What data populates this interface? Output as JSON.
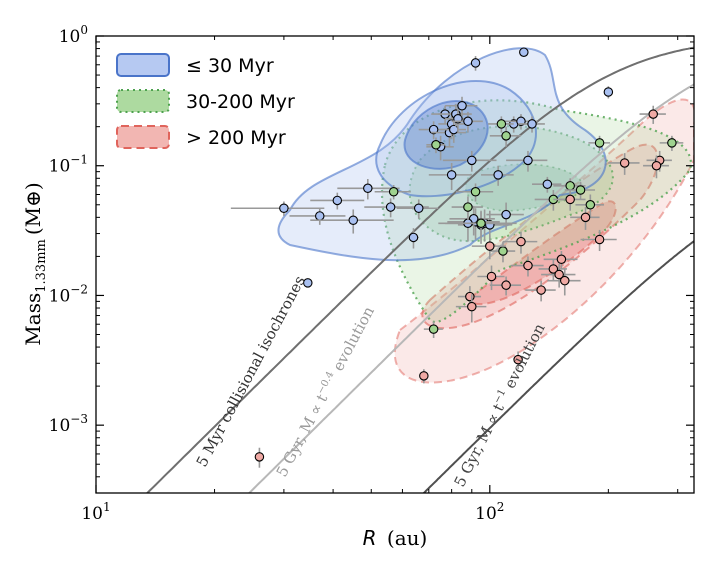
{
  "chart_data": {
    "type": "scatter",
    "xlabel_main": "R",
    "xlabel_unit": "(au)",
    "ylabel_main": "Mass",
    "ylabel_sub": "1.33mm",
    "ylabel_unit": "(M⊕)",
    "x_scale": "log",
    "y_scale": "log",
    "xlim": [
      10,
      330
    ],
    "ylim": [
      0.0003,
      1.0
    ],
    "x_ticks": [
      {
        "value": 10,
        "base": "10",
        "exp": "1"
      },
      {
        "value": 100,
        "base": "10",
        "exp": "2"
      }
    ],
    "y_ticks": [
      {
        "value": 0.001,
        "base": "10",
        "exp": "−3"
      },
      {
        "value": 0.01,
        "base": "10",
        "exp": "−2"
      },
      {
        "value": 0.1,
        "base": "10",
        "exp": "−1"
      },
      {
        "value": 1.0,
        "base": "10",
        "exp": "0"
      }
    ],
    "legend_position": "top-left",
    "legend": [
      {
        "label": "≤  30 Myr",
        "color": "#4a74c9",
        "style": "solid"
      },
      {
        "label": "30-200 Myr",
        "color": "#4ea24f",
        "style": "dotted"
      },
      {
        "label": ">  200 Myr",
        "color": "#e0645c",
        "style": "dashed"
      }
    ],
    "colors": {
      "young": "#a9c0f0",
      "mid": "#9fd38f",
      "old": "#f0a9a4"
    },
    "curves": [
      {
        "label": "5 Myr collisional isochrones",
        "color": "#707070",
        "style": "dashed",
        "x_at_bottom": 13.5,
        "x_plateau": 330,
        "plateau": 1.0
      },
      {
        "label": "5 Gyr, M ∝ t^−0.4 evolution",
        "color": "#b8b8b8",
        "style": "dashed",
        "x_at_bottom": 24.5,
        "x_plateau": 330,
        "plateau": 1.0
      },
      {
        "label": "5 Gyr, M ∝ t^−1 evolution",
        "color": "#505050",
        "style": "dashed",
        "x_at_bottom": 68,
        "x_plateau": 330,
        "plateau": 0.11
      }
    ],
    "curve_text": [
      {
        "main": "5 Myr collisional isochrones",
        "sup": ""
      },
      {
        "main": "5 Gyr, M ∝ t",
        "sup": "−0.4",
        "tail": " evolution"
      },
      {
        "main": "5 Gyr, M ∝ t",
        "sup": "−1",
        "tail": " evolution"
      }
    ],
    "series": [
      {
        "name": "≤ 30 Myr",
        "color": "#a9c0f0",
        "points": [
          {
            "x": 30,
            "y": 0.047,
            "xerr": [
              8,
              8
            ],
            "yerr": [
              0.006,
              0.006
            ]
          },
          {
            "x": 34.5,
            "y": 0.0125,
            "xerr": [
              0,
              0
            ],
            "yerr": [
              0.0008,
              0.0008
            ]
          },
          {
            "x": 37,
            "y": 0.041,
            "xerr": [
              6,
              6
            ],
            "yerr": [
              0.006,
              0.006
            ]
          },
          {
            "x": 41,
            "y": 0.054,
            "xerr": [
              6,
              7
            ],
            "yerr": [
              0.008,
              0.008
            ]
          },
          {
            "x": 45,
            "y": 0.038,
            "xerr": [
              10,
              12
            ],
            "yerr": [
              0.008,
              0.008
            ]
          },
          {
            "x": 49,
            "y": 0.067,
            "xerr": [
              8,
              10
            ],
            "yerr": [
              0.012,
              0.012
            ]
          },
          {
            "x": 56,
            "y": 0.048,
            "xerr": [
              8,
              14
            ],
            "yerr": [
              0.008,
              0.008
            ]
          },
          {
            "x": 64,
            "y": 0.028,
            "xerr": [
              2,
              2
            ],
            "yerr": [
              0.005,
              0.005
            ]
          },
          {
            "x": 66,
            "y": 0.047,
            "xerr": [
              8,
              8
            ],
            "yerr": [
              0.008,
              0.008
            ]
          },
          {
            "x": 72,
            "y": 0.19,
            "xerr": [
              6,
              6
            ],
            "yerr": [
              0.03,
              0.03
            ]
          },
          {
            "x": 75,
            "y": 0.14,
            "xerr": [
              6,
              6
            ],
            "yerr": [
              0.03,
              0.03
            ]
          },
          {
            "x": 77,
            "y": 0.25,
            "xerr": [
              6,
              6
            ],
            "yerr": [
              0.04,
              0.04
            ]
          },
          {
            "x": 79,
            "y": 0.18,
            "xerr": [
              8,
              8
            ],
            "yerr": [
              0.04,
              0.04
            ]
          },
          {
            "x": 80,
            "y": 0.21,
            "xerr": [
              6,
              6
            ],
            "yerr": [
              0.05,
              0.05
            ]
          },
          {
            "x": 81,
            "y": 0.19,
            "xerr": [
              6,
              6
            ],
            "yerr": [
              0.04,
              0.04
            ]
          },
          {
            "x": 82,
            "y": 0.25,
            "xerr": [
              8,
              8
            ],
            "yerr": [
              0.05,
              0.05
            ]
          },
          {
            "x": 83,
            "y": 0.23,
            "xerr": [
              6,
              6
            ],
            "yerr": [
              0.05,
              0.05
            ]
          },
          {
            "x": 85,
            "y": 0.29,
            "xerr": [
              8,
              8
            ],
            "yerr": [
              0.05,
              0.05
            ]
          },
          {
            "x": 88,
            "y": 0.22,
            "xerr": [
              8,
              8
            ],
            "yerr": [
              0.04,
              0.04
            ]
          },
          {
            "x": 80,
            "y": 0.085,
            "xerr": [
              10,
              10
            ],
            "yerr": [
              0.02,
              0.02
            ]
          },
          {
            "x": 92,
            "y": 0.62,
            "xerr": [
              0,
              0
            ],
            "yerr": [
              0.08,
              0.08
            ]
          },
          {
            "x": 90,
            "y": 0.11,
            "xerr": [
              14,
              14
            ],
            "yerr": [
              0.02,
              0.02
            ]
          },
          {
            "x": 95,
            "y": 0.035,
            "xerr": [
              12,
              12
            ],
            "yerr": [
              0.01,
              0.01
            ]
          },
          {
            "x": 97,
            "y": 0.036,
            "xerr": [
              20,
              20
            ],
            "yerr": [
              0.01,
              0.01
            ]
          },
          {
            "x": 100,
            "y": 0.035,
            "xerr": [
              14,
              14
            ],
            "yerr": [
              0.01,
              0.01
            ]
          },
          {
            "x": 92,
            "y": 0.037,
            "xerr": [
              14,
              14
            ],
            "yerr": [
              0.01,
              0.01
            ]
          },
          {
            "x": 91,
            "y": 0.039,
            "xerr": [
              12,
              12
            ],
            "yerr": [
              0.01,
              0.01
            ]
          },
          {
            "x": 88,
            "y": 0.036,
            "xerr": [
              14,
              14
            ],
            "yerr": [
              0.01,
              0.01
            ]
          },
          {
            "x": 105,
            "y": 0.085,
            "xerr": [
              10,
              10
            ],
            "yerr": [
              0.015,
              0.015
            ]
          },
          {
            "x": 110,
            "y": 0.042,
            "xerr": [
              12,
              12
            ],
            "yerr": [
              0.01,
              0.01
            ]
          },
          {
            "x": 115,
            "y": 0.21,
            "xerr": [
              10,
              10
            ],
            "yerr": [
              0.03,
              0.03
            ]
          },
          {
            "x": 120,
            "y": 0.22,
            "xerr": [
              12,
              12
            ],
            "yerr": [
              0.03,
              0.03
            ]
          },
          {
            "x": 122,
            "y": 0.75,
            "xerr": [
              0,
              0
            ],
            "yerr": [
              0.05,
              0.05
            ]
          },
          {
            "x": 125,
            "y": 0.11,
            "xerr": [
              15,
              15
            ],
            "yerr": [
              0.02,
              0.02
            ]
          },
          {
            "x": 128,
            "y": 0.21,
            "xerr": [
              10,
              10
            ],
            "yerr": [
              0.03,
              0.03
            ]
          },
          {
            "x": 140,
            "y": 0.072,
            "xerr": [
              12,
              12
            ],
            "yerr": [
              0.01,
              0.01
            ]
          },
          {
            "x": 200,
            "y": 0.37,
            "xerr": [
              0,
              0
            ],
            "yerr": [
              0.04,
              0.04
            ]
          }
        ]
      },
      {
        "name": "30-200 Myr",
        "color": "#9fd38f",
        "points": [
          {
            "x": 57,
            "y": 0.063,
            "xerr": [
              6,
              6
            ],
            "yerr": [
              0.008,
              0.008
            ]
          },
          {
            "x": 72,
            "y": 0.0055,
            "xerr": [
              4,
              4
            ],
            "yerr": [
              0.0008,
              0.0008
            ]
          },
          {
            "x": 73,
            "y": 0.145,
            "xerr": [
              4,
              4
            ],
            "yerr": [
              0.02,
              0.02
            ]
          },
          {
            "x": 88,
            "y": 0.048,
            "xerr": [
              8,
              8
            ],
            "yerr": [
              0.01,
              0.01
            ]
          },
          {
            "x": 92,
            "y": 0.063,
            "xerr": [
              10,
              10
            ],
            "yerr": [
              0.01,
              0.01
            ]
          },
          {
            "x": 95,
            "y": 0.036,
            "xerr": [
              12,
              12
            ],
            "yerr": [
              0.008,
              0.008
            ]
          },
          {
            "x": 107,
            "y": 0.21,
            "xerr": [
              8,
              8
            ],
            "yerr": [
              0.03,
              0.03
            ]
          },
          {
            "x": 110,
            "y": 0.17,
            "xerr": [
              10,
              10
            ],
            "yerr": [
              0.03,
              0.03
            ]
          },
          {
            "x": 108,
            "y": 0.022,
            "xerr": [
              8,
              8
            ],
            "yerr": [
              0.004,
              0.004
            ]
          },
          {
            "x": 145,
            "y": 0.055,
            "xerr": [
              15,
              15
            ],
            "yerr": [
              0.01,
              0.01
            ]
          },
          {
            "x": 160,
            "y": 0.07,
            "xerr": [
              15,
              15
            ],
            "yerr": [
              0.01,
              0.01
            ]
          },
          {
            "x": 170,
            "y": 0.065,
            "xerr": [
              15,
              15
            ],
            "yerr": [
              0.01,
              0.01
            ]
          },
          {
            "x": 180,
            "y": 0.05,
            "xerr": [
              15,
              15
            ],
            "yerr": [
              0.01,
              0.01
            ]
          },
          {
            "x": 190,
            "y": 0.15,
            "xerr": [
              12,
              12
            ],
            "yerr": [
              0.02,
              0.02
            ]
          },
          {
            "x": 290,
            "y": 0.15,
            "xerr": [
              20,
              20
            ],
            "yerr": [
              0.02,
              0.02
            ]
          }
        ]
      },
      {
        "name": "> 200 Myr",
        "color": "#f0a9a4",
        "points": [
          {
            "x": 26,
            "y": 0.00057,
            "xerr": [
              0,
              0
            ],
            "yerr": [
              0.0001,
              0.0001
            ]
          },
          {
            "x": 68,
            "y": 0.0024,
            "xerr": [
              0,
              0
            ],
            "yerr": [
              0.0003,
              0.0003
            ]
          },
          {
            "x": 89,
            "y": 0.0098,
            "xerr": [
              6,
              6
            ],
            "yerr": [
              0.002,
              0.002
            ]
          },
          {
            "x": 90,
            "y": 0.0082,
            "xerr": [
              8,
              8
            ],
            "yerr": [
              0.002,
              0.002
            ]
          },
          {
            "x": 100,
            "y": 0.024,
            "xerr": [
              10,
              10
            ],
            "yerr": [
              0.005,
              0.005
            ]
          },
          {
            "x": 101,
            "y": 0.014,
            "xerr": [
              8,
              8
            ],
            "yerr": [
              0.003,
              0.003
            ]
          },
          {
            "x": 110,
            "y": 0.012,
            "xerr": [
              10,
              10
            ],
            "yerr": [
              0.002,
              0.002
            ]
          },
          {
            "x": 118,
            "y": 0.0032,
            "xerr": [
              0,
              0
            ],
            "yerr": [
              0.0005,
              0.0005
            ]
          },
          {
            "x": 120,
            "y": 0.026,
            "xerr": [
              12,
              12
            ],
            "yerr": [
              0.005,
              0.005
            ]
          },
          {
            "x": 125,
            "y": 0.017,
            "xerr": [
              12,
              12
            ],
            "yerr": [
              0.003,
              0.003
            ]
          },
          {
            "x": 135,
            "y": 0.011,
            "xerr": [
              12,
              12
            ],
            "yerr": [
              0.002,
              0.002
            ]
          },
          {
            "x": 145,
            "y": 0.016,
            "xerr": [
              12,
              12
            ],
            "yerr": [
              0.003,
              0.003
            ]
          },
          {
            "x": 150,
            "y": 0.0145,
            "xerr": [
              15,
              15
            ],
            "yerr": [
              0.003,
              0.003
            ]
          },
          {
            "x": 152,
            "y": 0.019,
            "xerr": [
              15,
              15
            ],
            "yerr": [
              0.003,
              0.003
            ]
          },
          {
            "x": 155,
            "y": 0.013,
            "xerr": [
              15,
              15
            ],
            "yerr": [
              0.003,
              0.003
            ]
          },
          {
            "x": 160,
            "y": 0.055,
            "xerr": [
              15,
              15
            ],
            "yerr": [
              0.01,
              0.01
            ]
          },
          {
            "x": 175,
            "y": 0.04,
            "xerr": [
              15,
              15
            ],
            "yerr": [
              0.008,
              0.008
            ]
          },
          {
            "x": 190,
            "y": 0.027,
            "xerr": [
              20,
              20
            ],
            "yerr": [
              0.005,
              0.005
            ]
          },
          {
            "x": 220,
            "y": 0.105,
            "xerr": [
              20,
              20
            ],
            "yerr": [
              0.02,
              0.02
            ]
          },
          {
            "x": 260,
            "y": 0.25,
            "xerr": [
              20,
              20
            ],
            "yerr": [
              0.04,
              0.04
            ]
          },
          {
            "x": 270,
            "y": 0.11,
            "xerr": [
              20,
              20
            ],
            "yerr": [
              0.02,
              0.02
            ]
          },
          {
            "x": 265,
            "y": 0.1,
            "xerr": [
              20,
              20
            ],
            "yerr": [
              0.02,
              0.02
            ]
          }
        ]
      }
    ]
  }
}
